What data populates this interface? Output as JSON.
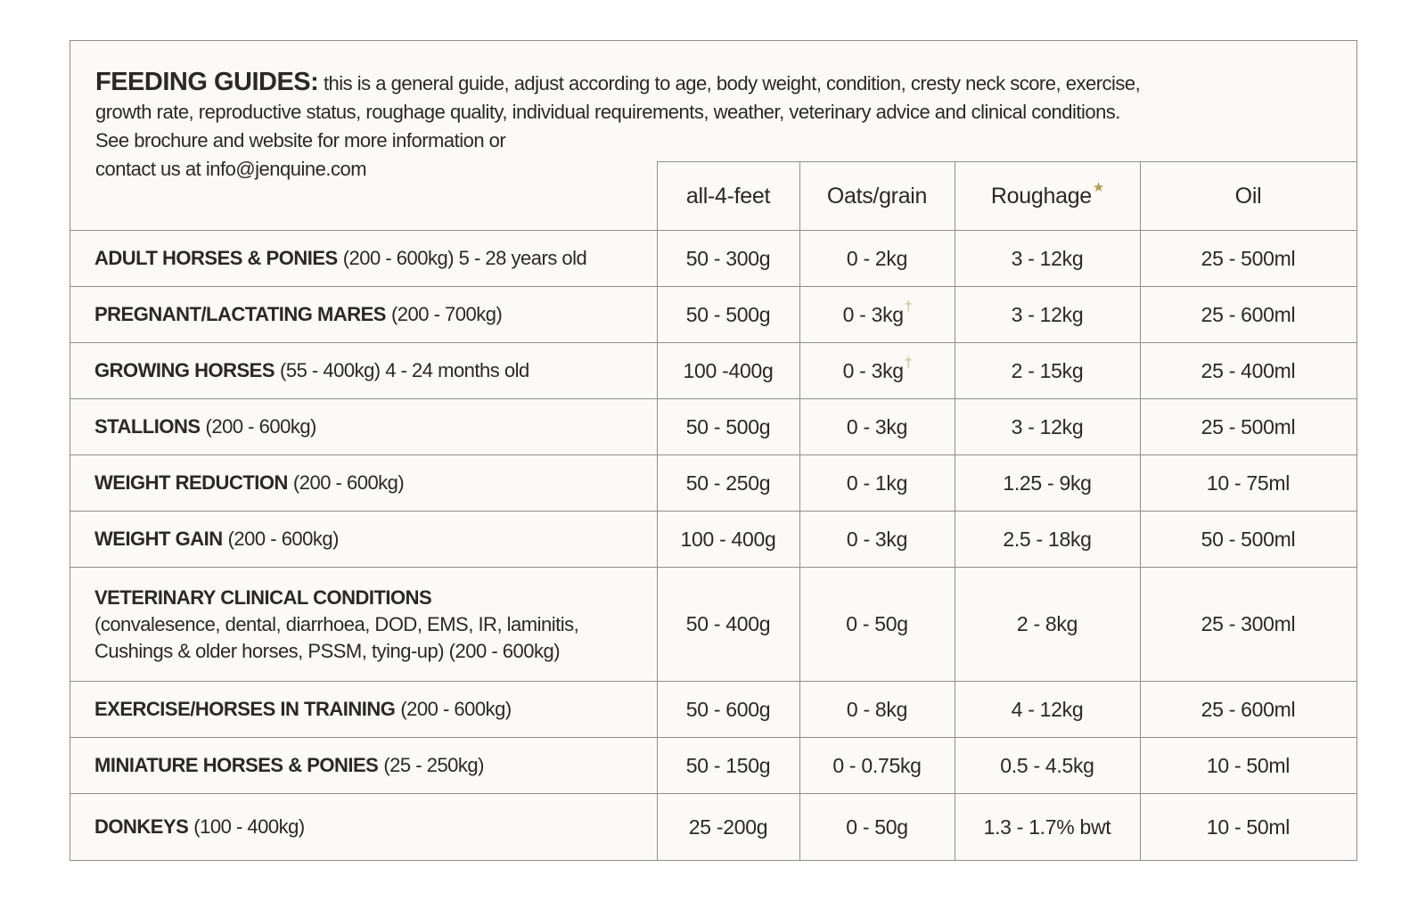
{
  "intro": {
    "title": "FEEDING GUIDES:",
    "line1": "this is a general guide, adjust according to age, body weight, condition, cresty neck score, exercise,",
    "line2": "growth rate, reproductive status, roughage quality, individual requirements, weather, veterinary advice and clinical conditions.",
    "line3": "See brochure and website for more information or",
    "line4": "contact us at info@jenquine.com"
  },
  "colors": {
    "accent_star_gold": "#b99d4e",
    "accent_dagger_gold": "#d8c48f",
    "line_gray": "#8f8e8c",
    "background": "#fbfaf6"
  },
  "table": {
    "columns": [
      {
        "label": "all-4-feet",
        "sup": ""
      },
      {
        "label": "Oats/grain",
        "sup": ""
      },
      {
        "label": "Roughage",
        "sup": "★"
      },
      {
        "label": "Oil",
        "sup": ""
      }
    ],
    "rows": [
      {
        "name": "ADULT HORSES & PONIES",
        "detail": "(200 - 600kg) 5 - 28 years old",
        "vals": [
          {
            "v": "50 - 300g",
            "s": ""
          },
          {
            "v": "0 - 2kg",
            "s": ""
          },
          {
            "v": "3 - 12kg",
            "s": ""
          },
          {
            "v": "25 - 500ml",
            "s": ""
          }
        ]
      },
      {
        "name": "PREGNANT/LACTATING MARES",
        "detail": "(200 - 700kg)",
        "vals": [
          {
            "v": "50 - 500g",
            "s": ""
          },
          {
            "v": "0 - 3kg",
            "s": "†"
          },
          {
            "v": "3 - 12kg",
            "s": ""
          },
          {
            "v": "25 - 600ml",
            "s": ""
          }
        ]
      },
      {
        "name": "GROWING HORSES",
        "detail": "(55 - 400kg) 4 - 24 months old",
        "vals": [
          {
            "v": "100 -400g",
            "s": ""
          },
          {
            "v": "0 - 3kg",
            "s": "†"
          },
          {
            "v": "2 - 15kg",
            "s": ""
          },
          {
            "v": "25 - 400ml",
            "s": ""
          }
        ]
      },
      {
        "name": "STALLIONS",
        "detail": "(200 - 600kg)",
        "vals": [
          {
            "v": "50 - 500g",
            "s": ""
          },
          {
            "v": "0 - 3kg",
            "s": ""
          },
          {
            "v": "3 - 12kg",
            "s": ""
          },
          {
            "v": "25 - 500ml",
            "s": ""
          }
        ]
      },
      {
        "name": "WEIGHT REDUCTION",
        "detail": "(200 - 600kg)",
        "vals": [
          {
            "v": "50 - 250g",
            "s": ""
          },
          {
            "v": "0 - 1kg",
            "s": ""
          },
          {
            "v": "1.25 - 9kg",
            "s": ""
          },
          {
            "v": "10 - 75ml",
            "s": ""
          }
        ]
      },
      {
        "name": "WEIGHT GAIN",
        "detail": "(200 - 600kg)",
        "vals": [
          {
            "v": "100 - 400g",
            "s": ""
          },
          {
            "v": "0 - 3kg",
            "s": ""
          },
          {
            "v": "2.5 - 18kg",
            "s": ""
          },
          {
            "v": "50 - 500ml",
            "s": ""
          }
        ]
      },
      {
        "name": "VETERINARY CLINICAL CONDITIONS",
        "detail": "",
        "sub1": "(convalesence, dental, diarrhoea, DOD, EMS, IR, laminitis,",
        "sub2": "Cushings & older horses, PSSM, tying-up) (200 - 600kg)",
        "vals": [
          {
            "v": "50 - 400g",
            "s": ""
          },
          {
            "v": "0 - 50g",
            "s": ""
          },
          {
            "v": "2 - 8kg",
            "s": ""
          },
          {
            "v": "25 - 300ml",
            "s": ""
          }
        ]
      },
      {
        "name": "EXERCISE/HORSES IN TRAINING",
        "detail": "(200 - 600kg)",
        "vals": [
          {
            "v": "50 - 600g",
            "s": ""
          },
          {
            "v": "0 - 8kg",
            "s": ""
          },
          {
            "v": "4 - 12kg",
            "s": ""
          },
          {
            "v": "25 - 600ml",
            "s": ""
          }
        ]
      },
      {
        "name": "MINIATURE HORSES & PONIES",
        "detail": "(25 - 250kg)",
        "vals": [
          {
            "v": "50 - 150g",
            "s": ""
          },
          {
            "v": "0 - 0.75kg",
            "s": ""
          },
          {
            "v": "0.5 - 4.5kg",
            "s": ""
          },
          {
            "v": "10 - 50ml",
            "s": ""
          }
        ]
      },
      {
        "name": "DONKEYS",
        "detail": "(100 - 400kg)",
        "vals": [
          {
            "v": "25 -200g",
            "s": ""
          },
          {
            "v": "0 - 50g",
            "s": ""
          },
          {
            "v": "1.3 - 1.7% bwt",
            "s": ""
          },
          {
            "v": "10 - 50ml",
            "s": ""
          }
        ]
      }
    ]
  }
}
